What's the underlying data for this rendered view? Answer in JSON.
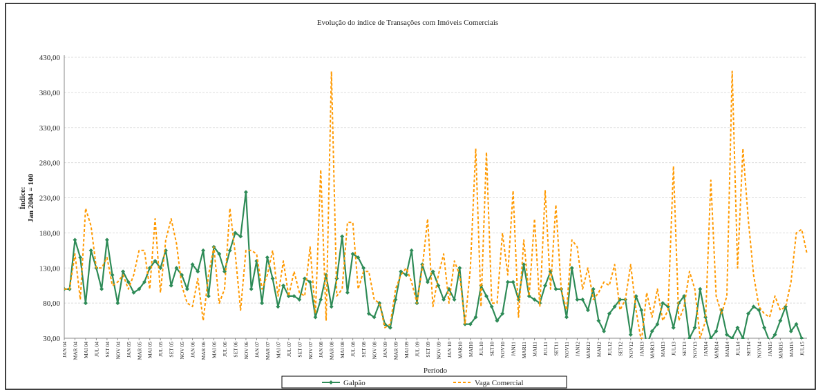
{
  "chart_data": {
    "type": "line",
    "title": "Evolução do índice de Transações com Imóveis Comerciais",
    "x_label": "Período",
    "y_label": [
      "Índice:",
      "Jan 2004 = 100"
    ],
    "categories": [
      "JAN 04",
      null,
      "MAR 04",
      null,
      "MAI 04",
      null,
      "JUL 04",
      null,
      "SET 04",
      null,
      "NOV 04",
      null,
      "JAN 05",
      null,
      "MAR 05",
      null,
      "MAI 05",
      null,
      "JUL 05",
      null,
      "SET 05",
      null,
      "NOV 05",
      null,
      "JAN 06",
      null,
      "MAR 06",
      null,
      "MAI 06",
      null,
      "JUL 06",
      null,
      "SET 06",
      null,
      "NOV 06",
      null,
      "JAN 07",
      null,
      "MAR 07",
      null,
      "MAI 07",
      null,
      "JUL 07",
      null,
      "SET 07",
      null,
      "NOV 07",
      null,
      "JAN 08",
      null,
      "MAR 08",
      null,
      "MAI 08",
      null,
      "JUL 08",
      null,
      "SET 08",
      null,
      "NOV 08",
      null,
      "JAN 09",
      null,
      "MAR 09",
      null,
      "MAI 09",
      null,
      "JUL 09",
      null,
      "SET 09",
      null,
      "NOV 09",
      null,
      "JAN 10",
      null,
      "MAR10",
      null,
      "MAI10",
      null,
      "JUL10",
      null,
      "SET10",
      null,
      "NOV10",
      null,
      "JAN11",
      null,
      "MAR11",
      null,
      "MAI11",
      null,
      "JUL11",
      null,
      "SET11",
      null,
      "NOV11",
      null,
      "JAN12",
      null,
      "MAR12",
      null,
      "MAI12",
      null,
      "JUL12",
      null,
      "SET12",
      null,
      "NOV12",
      null,
      "JAN13",
      null,
      "MAR13",
      null,
      "MAI13",
      null,
      "JUL13",
      null,
      "SET13",
      null,
      "NOV13",
      null,
      "JAN14",
      null,
      "MAR14",
      null,
      "MAI14",
      null,
      "JUL14",
      null,
      "SET14",
      null,
      "NOV14",
      null,
      "JAN15",
      null,
      "MAR15",
      null,
      "MAI15",
      null,
      "JUL15",
      null
    ],
    "series": [
      {
        "name": "Galpão",
        "color": "#2e8b57",
        "style": "solid",
        "marker": "diamond",
        "values": [
          100,
          100,
          170,
          145,
          80,
          155,
          130,
          100,
          170,
          120,
          80,
          125,
          110,
          95,
          100,
          110,
          130,
          140,
          130,
          155,
          105,
          130,
          120,
          100,
          135,
          125,
          155,
          90,
          160,
          150,
          125,
          155,
          180,
          175,
          238,
          100,
          140,
          80,
          145,
          115,
          75,
          105,
          90,
          90,
          85,
          115,
          110,
          60,
          85,
          120,
          75,
          115,
          175,
          95,
          150,
          145,
          130,
          65,
          60,
          80,
          50,
          45,
          85,
          125,
          120,
          155,
          80,
          135,
          110,
          125,
          105,
          85,
          100,
          85,
          130,
          50,
          50,
          60,
          105,
          90,
          75,
          55,
          65,
          110,
          110,
          85,
          135,
          90,
          85,
          80,
          105,
          125,
          100,
          100,
          60,
          130,
          85,
          85,
          70,
          100,
          55,
          40,
          65,
          75,
          85,
          85,
          35,
          90,
          70,
          20,
          40,
          50,
          80,
          75,
          45,
          80,
          90,
          30,
          45,
          100,
          60,
          30,
          40,
          70,
          35,
          30,
          45,
          30,
          65,
          75,
          70,
          45,
          25,
          35,
          55,
          75,
          40,
          50,
          30,
          20
        ]
      },
      {
        "name": "Vaga Comercial",
        "color": "#ff9900",
        "style": "dashed",
        "marker": "none",
        "values": [
          100,
          100,
          150,
          85,
          215,
          190,
          130,
          130,
          145,
          105,
          110,
          120,
          100,
          120,
          155,
          155,
          100,
          200,
          95,
          170,
          200,
          165,
          105,
          80,
          75,
          115,
          55,
          120,
          160,
          80,
          100,
          215,
          150,
          70,
          155,
          155,
          150,
          100,
          120,
          155,
          90,
          140,
          90,
          125,
          95,
          90,
          160,
          65,
          270,
          55,
          410,
          90,
          100,
          195,
          195,
          100,
          125,
          125,
          85,
          80,
          45,
          50,
          100,
          120,
          130,
          110,
          80,
          130,
          200,
          75,
          120,
          150,
          80,
          140,
          120,
          50,
          130,
          300,
          75,
          295,
          80,
          80,
          180,
          120,
          240,
          60,
          170,
          90,
          200,
          75,
          240,
          100,
          220,
          100,
          70,
          170,
          160,
          100,
          130,
          85,
          95,
          110,
          105,
          135,
          70,
          85,
          135,
          70,
          25,
          95,
          60,
          100,
          55,
          70,
          275,
          55,
          75,
          125,
          100,
          30,
          55,
          255,
          90,
          65,
          90,
          410,
          130,
          300,
          200,
          120,
          75,
          65,
          60,
          90,
          70,
          75,
          110,
          180,
          185,
          150
        ]
      }
    ],
    "ylim": [
      30,
      430
    ],
    "yticks": [
      {
        "value": 30,
        "label": "30,00"
      },
      {
        "value": 80,
        "label": "80,00"
      },
      {
        "value": 130,
        "label": "130,00"
      },
      {
        "value": 180,
        "label": "180,00"
      },
      {
        "value": 230,
        "label": "230,00"
      },
      {
        "value": 280,
        "label": "280,00"
      },
      {
        "value": 330,
        "label": "330,00"
      },
      {
        "value": 380,
        "label": "380,00"
      },
      {
        "value": 430,
        "label": "430,00"
      }
    ],
    "grid": true,
    "legend": "bottom"
  }
}
